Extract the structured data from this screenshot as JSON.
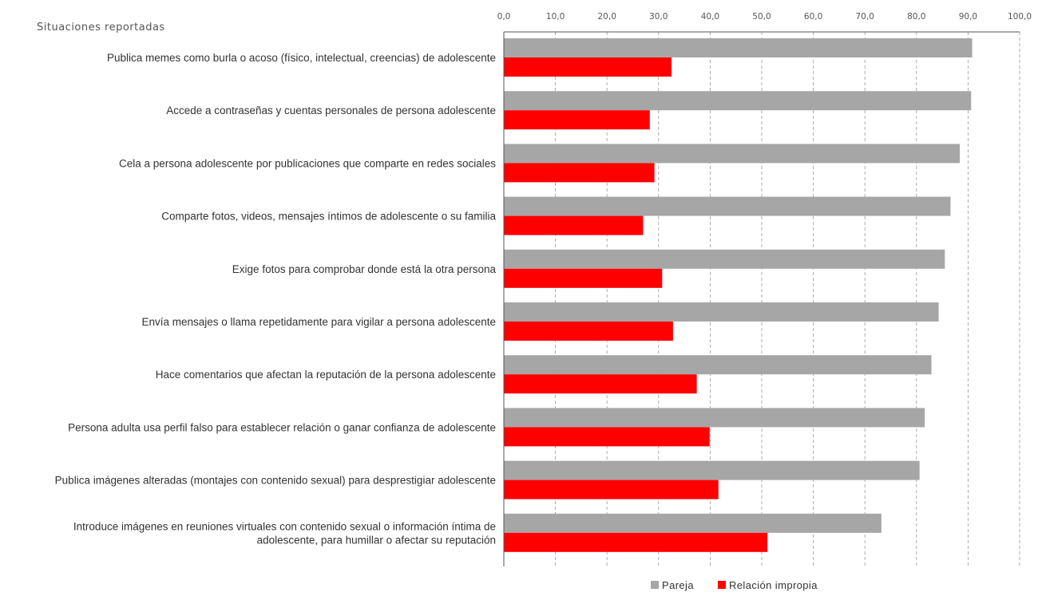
{
  "chart_data": {
    "type": "bar",
    "orientation": "horizontal",
    "title": "Situaciones reportadas",
    "x_ticks": [
      "0,0",
      "10,0",
      "20,0",
      "30,0",
      "40,0",
      "50,0",
      "60,0",
      "70,0",
      "80,0",
      "90,0",
      "100,0"
    ],
    "xlim": [
      0,
      100
    ],
    "grid": "vertical dashed",
    "legend_position": "bottom",
    "categories": [
      [
        "Publica memes como burla o acoso (físico, intelectual, creencias) de adolescente"
      ],
      [
        "Accede a contraseñas y cuentas personales de persona adolescente"
      ],
      [
        "Cela a persona adolescente por publicaciones que comparte en redes sociales"
      ],
      [
        "Comparte fotos, videos, mensajes íntimos de adolescente o su familia"
      ],
      [
        "Exige fotos para comprobar donde está la otra persona"
      ],
      [
        "Envía mensajes o llama repetidamente para vigilar a persona adolescente"
      ],
      [
        "Hace comentarios que afectan la reputación de la persona adolescente"
      ],
      [
        "Persona adulta usa perfil falso para establecer relación o ganar confianza de adolescente"
      ],
      [
        "Publica imágenes alteradas (montajes con contenido sexual) para desprestigiar adolescente"
      ],
      [
        "Introduce imágenes en reuniones virtuales con contenido sexual o información íntima de",
        "adolescente, para humillar o afectar su reputación"
      ]
    ],
    "series": [
      {
        "name": "Pareja",
        "color": "#a6a6a6",
        "values": [
          90.8,
          90.6,
          88.4,
          86.6,
          85.5,
          84.3,
          82.9,
          81.6,
          80.6,
          73.2
        ]
      },
      {
        "name": "Relación impropia",
        "color": "#ff0000",
        "values": [
          32.5,
          28.3,
          29.2,
          27.0,
          30.7,
          32.8,
          37.4,
          39.9,
          41.6,
          51.1
        ]
      }
    ]
  }
}
